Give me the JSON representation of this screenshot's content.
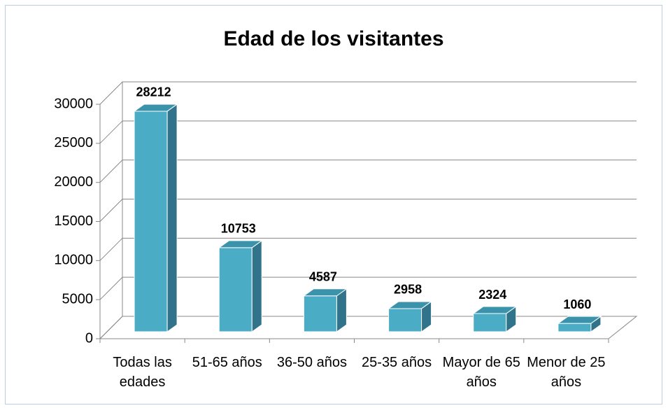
{
  "chart_data": {
    "type": "bar3d",
    "title": "Edad de los visitantes",
    "categories": [
      "Todas las edades",
      "51-65 años",
      "36-50 años",
      "25-35 años",
      "Mayor de 65 años",
      "Menor de 25 años"
    ],
    "values": [
      28212,
      10753,
      4587,
      2958,
      2324,
      1060
    ],
    "color": "#4bacc6",
    "ylim": [
      0,
      30000
    ],
    "yticks": [
      0,
      5000,
      10000,
      15000,
      20000,
      25000,
      30000
    ],
    "grid": true
  }
}
